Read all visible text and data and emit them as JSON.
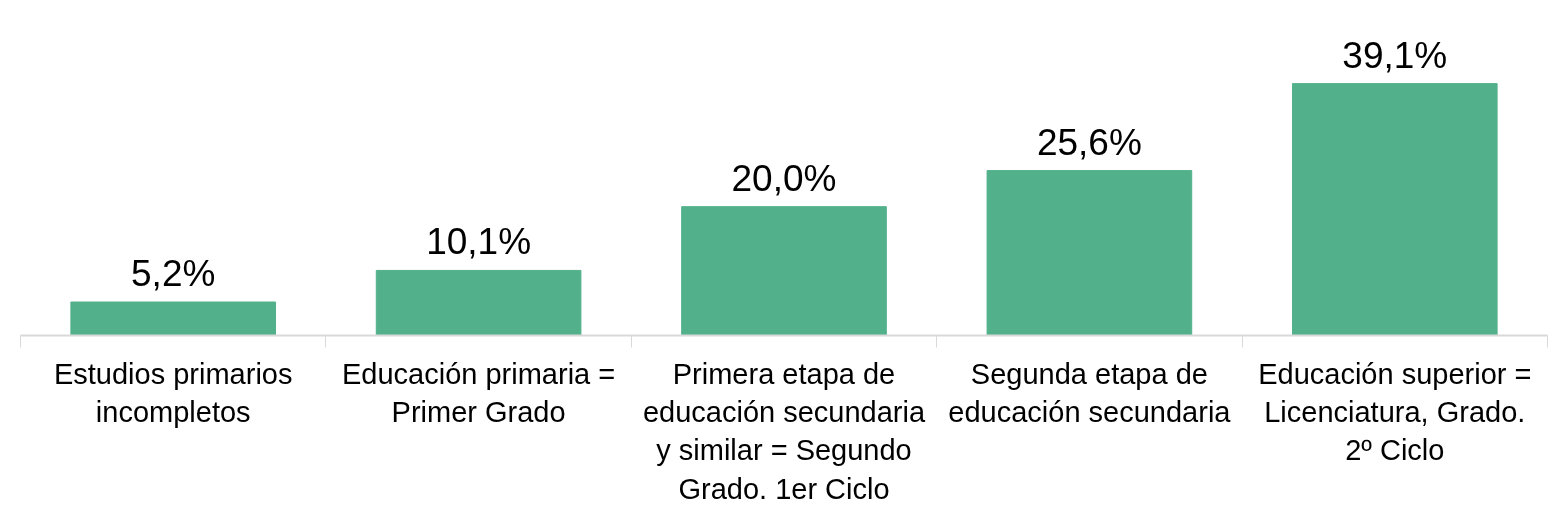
{
  "chart_data": {
    "type": "bar",
    "categories": [
      "Estudios primarios incompletos",
      "Educación primaria = Primer Grado",
      "Primera etapa de educación secundaria y similar = Segundo Grado. 1er Ciclo",
      "Segunda etapa de educación secundaria",
      "Educación superior = Licenciatura, Grado. 2º Ciclo"
    ],
    "values": [
      5.2,
      10.1,
      20.0,
      25.6,
      39.1
    ],
    "value_labels": [
      "5,2%",
      "10,1%",
      "20,0%",
      "25,6%",
      "39,1%"
    ],
    "color": "#52b18a",
    "grid": false
  }
}
